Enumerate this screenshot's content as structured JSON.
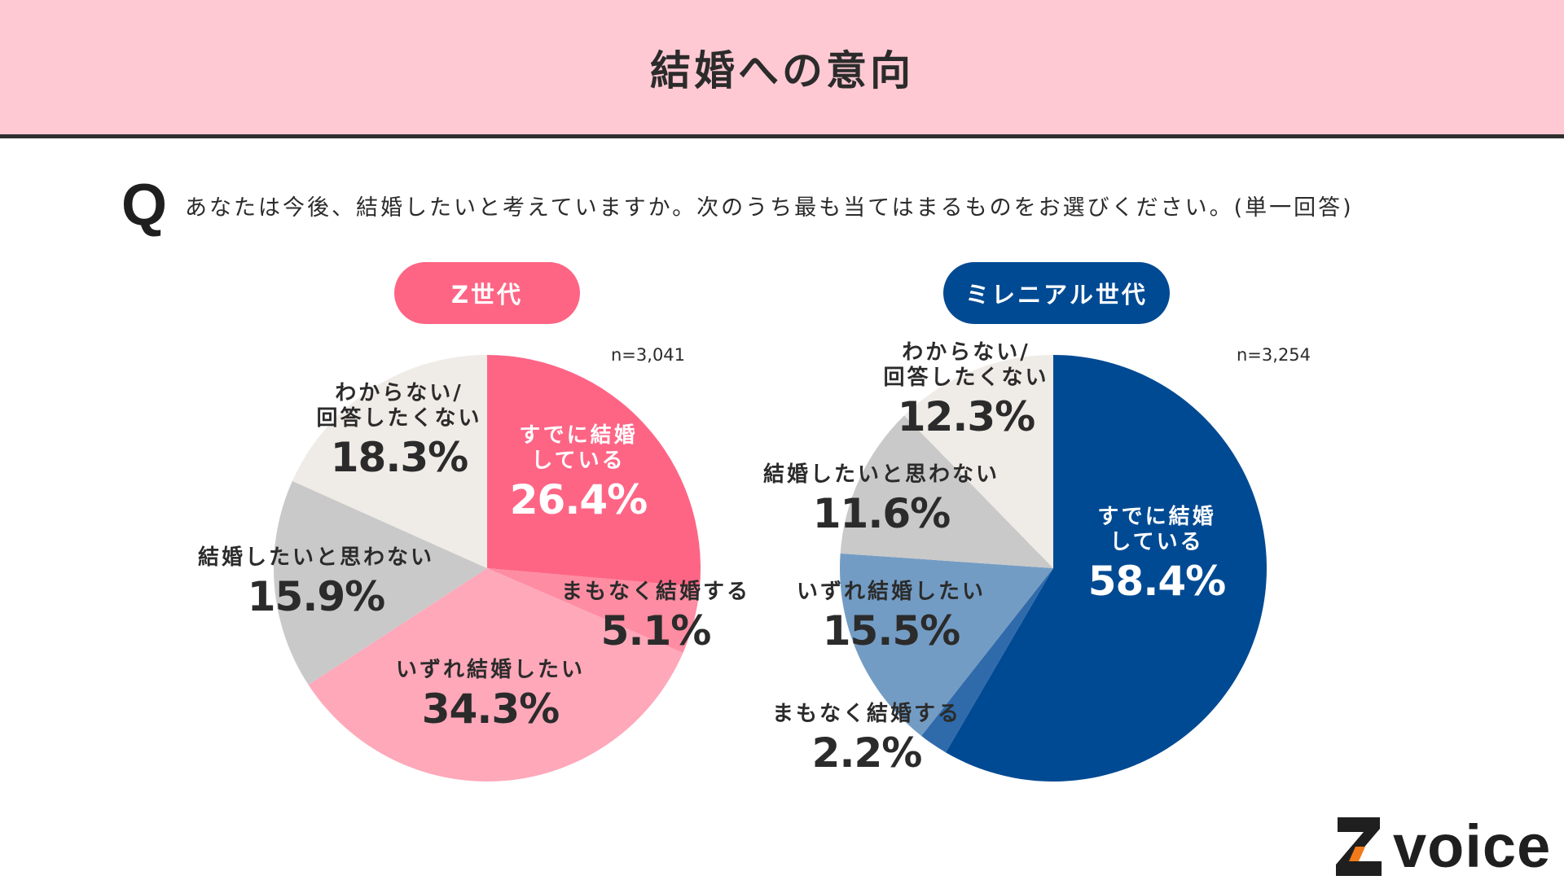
{
  "header": {
    "title": "結婚への意向"
  },
  "question": {
    "icon": "Q",
    "text": "あなたは今後、結婚したいと考えていますか。次のうち最も当てはまるものをお選びください。(単一回答)"
  },
  "brand": {
    "logo_text": "voice",
    "logo_letter": "Z"
  },
  "chart_data": [
    {
      "type": "pie",
      "title": "Z世代",
      "n_label": "n=3,041",
      "start_angle_deg": 0,
      "direction": "clockwise",
      "slices": [
        {
          "label": "すでに結婚している",
          "label_lines": [
            "すでに結婚",
            "している"
          ],
          "value": 26.4,
          "pct_text": "26.4%",
          "color": "#fe6585",
          "label_style": "light"
        },
        {
          "label": "まもなく結婚する",
          "label_lines": [
            "まもなく結婚する"
          ],
          "value": 5.1,
          "pct_text": "5.1%",
          "color": "#fe8ca2",
          "label_style": "dark"
        },
        {
          "label": "いずれ結婚したい",
          "label_lines": [
            "いずれ結婚したい"
          ],
          "value": 34.3,
          "pct_text": "34.3%",
          "color": "#fea8ba",
          "label_style": "dark"
        },
        {
          "label": "結婚したいと思わない",
          "label_lines": [
            "結婚したいと思わない"
          ],
          "value": 15.9,
          "pct_text": "15.9%",
          "color": "#c9c9c9",
          "label_style": "dark"
        },
        {
          "label": "わからない/回答したくない",
          "label_lines": [
            "わからない/",
            "回答したくない"
          ],
          "value": 18.3,
          "pct_text": "18.3%",
          "color": "#efebe6",
          "label_style": "dark"
        }
      ]
    },
    {
      "type": "pie",
      "title": "ミレニアル世代",
      "n_label": "n=3,254",
      "start_angle_deg": 0,
      "direction": "clockwise",
      "slices": [
        {
          "label": "すでに結婚している",
          "label_lines": [
            "すでに結婚",
            "している"
          ],
          "value": 58.4,
          "pct_text": "58.4%",
          "color": "#004a93",
          "label_style": "light"
        },
        {
          "label": "まもなく結婚する",
          "label_lines": [
            "まもなく結婚する"
          ],
          "value": 2.2,
          "pct_text": "2.2%",
          "color": "#2f6aab",
          "label_style": "dark"
        },
        {
          "label": "いずれ結婚したい",
          "label_lines": [
            "いずれ結婚したい"
          ],
          "value": 15.5,
          "pct_text": "15.5%",
          "color": "#739cc4",
          "label_style": "dark"
        },
        {
          "label": "結婚したいと思わない",
          "label_lines": [
            "結婚したいと思わない"
          ],
          "value": 11.6,
          "pct_text": "11.6%",
          "color": "#c9c9c9",
          "label_style": "dark"
        },
        {
          "label": "わからない/回答したくない",
          "label_lines": [
            "わからない/",
            "回答したくない"
          ],
          "value": 12.3,
          "pct_text": "12.3%",
          "color": "#efebe6",
          "label_style": "dark"
        }
      ]
    }
  ]
}
